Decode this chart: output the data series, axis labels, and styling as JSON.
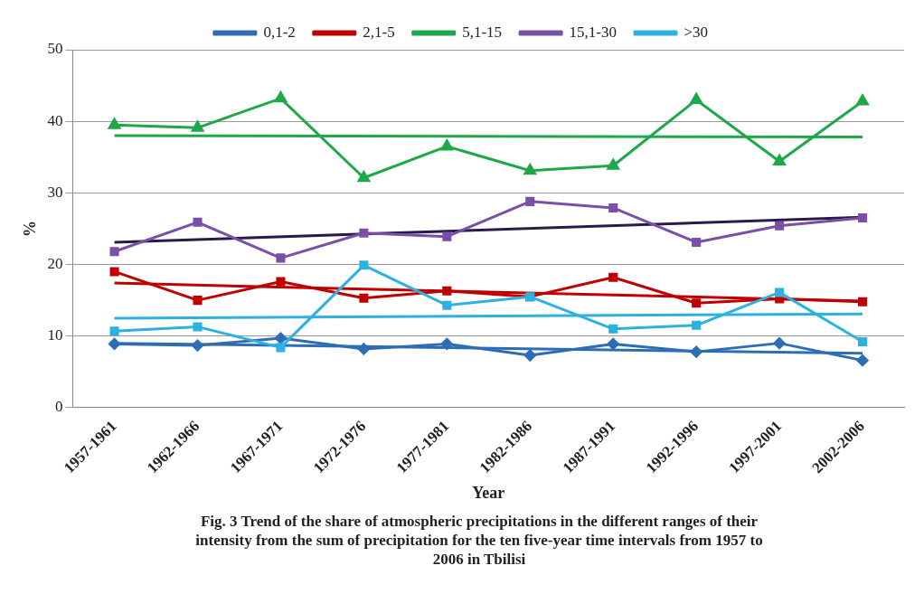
{
  "chart_data": {
    "type": "line",
    "title": "Fig. 3 Trend of the share of atmospheric precipitations in the different ranges of their intensity from the sum of precipitation for the ten five-year time intervals from 1957 to 2006 in Tbilisi",
    "xlabel": "Year",
    "ylabel": "%",
    "categories": [
      "1957-1961",
      "1962-1966",
      "1967-1971",
      "1972-1976",
      "1977-1981",
      "1982-1986",
      "1987-1991",
      "1992-1996",
      "1997-2001",
      "2002-2006"
    ],
    "series": [
      {
        "name": "0,1-2",
        "color": "#2e6db5",
        "marker": "diamond",
        "values": [
          8.9,
          8.7,
          9.7,
          8.2,
          8.9,
          7.3,
          8.9,
          7.8,
          9.0,
          6.6
        ]
      },
      {
        "name": "2,1-5",
        "color": "#c00000",
        "marker": "square",
        "values": [
          19.0,
          15.0,
          17.6,
          15.3,
          16.3,
          15.5,
          18.2,
          14.6,
          15.2,
          14.8
        ]
      },
      {
        "name": "5,1-15",
        "color": "#1fa84a",
        "marker": "triangle",
        "values": [
          39.5,
          39.1,
          43.2,
          32.1,
          36.5,
          33.1,
          33.8,
          43.0,
          34.4,
          42.8
        ]
      },
      {
        "name": "15,1-30",
        "color": "#7a4fa8",
        "marker": "square",
        "values": [
          21.8,
          25.9,
          20.9,
          24.4,
          23.9,
          28.8,
          27.9,
          23.1,
          25.4,
          26.5
        ]
      },
      {
        "name": ">30",
        "color": "#2cb1e1",
        "marker": "square",
        "values": [
          10.7,
          11.3,
          8.4,
          19.9,
          14.3,
          15.5,
          11.0,
          11.5,
          16.1,
          9.2
        ]
      },
      {
        "type": "line",
        "color": "#2e6db5",
        "marker": "none",
        "x": [
          "1957-1961",
          "2002-2006"
        ],
        "values": [
          9.0,
          7.6
        ]
      },
      {
        "type": "line",
        "color": "#c00000",
        "marker": "none",
        "x": [
          "1957-1961",
          "2002-2006"
        ],
        "values": [
          17.4,
          14.9
        ]
      },
      {
        "type": "line",
        "color": "#1fa84a",
        "marker": "none",
        "x": [
          "1957-1961",
          "2002-2006"
        ],
        "values": [
          38.0,
          37.8
        ]
      },
      {
        "type": "line",
        "color": "#2a1a4a",
        "marker": "none",
        "x": [
          "1957-1961",
          "2002-2006"
        ],
        "values": [
          23.1,
          26.6
        ]
      },
      {
        "type": "line",
        "color": "#2cb1e1",
        "marker": "none",
        "x": [
          "1957-1961",
          "2002-2006"
        ],
        "values": [
          12.5,
          13.1
        ]
      }
    ],
    "ylim": [
      0,
      50
    ],
    "yticks": [
      0,
      10,
      20,
      30,
      40,
      50
    ],
    "grid": "y",
    "legend": "top"
  }
}
